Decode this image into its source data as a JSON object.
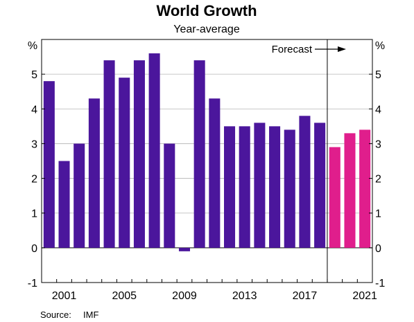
{
  "chart_data": {
    "type": "bar",
    "title": "World Growth",
    "subtitle": "Year-average",
    "unit_left": "%",
    "unit_right": "%",
    "ylim": [
      -1,
      6
    ],
    "yticks": [
      -1,
      0,
      1,
      2,
      3,
      4,
      5
    ],
    "x": [
      2000,
      2001,
      2002,
      2003,
      2004,
      2005,
      2006,
      2007,
      2008,
      2009,
      2010,
      2011,
      2012,
      2013,
      2014,
      2015,
      2016,
      2017,
      2018,
      2019,
      2020,
      2021
    ],
    "xtick_labels": [
      "2001",
      "2005",
      "2009",
      "2013",
      "2017",
      "2021"
    ],
    "series": [
      {
        "values": [
          4.8,
          2.5,
          3.0,
          4.3,
          5.4,
          4.9,
          5.4,
          5.6,
          3.0,
          -0.1,
          5.4,
          4.3,
          3.5,
          3.5,
          3.6,
          3.5,
          3.4,
          3.8,
          3.6,
          null,
          null,
          null
        ],
        "color": "#4b169c"
      },
      {
        "values": [
          null,
          null,
          null,
          null,
          null,
          null,
          null,
          null,
          null,
          null,
          null,
          null,
          null,
          null,
          null,
          null,
          null,
          null,
          null,
          2.9,
          3.3,
          3.4
        ],
        "color": "#e01e8c"
      }
    ],
    "forecast_label": "Forecast",
    "forecast_start_after": 2018,
    "grid": true,
    "source_label": "Source:",
    "source_value": "IMF"
  }
}
